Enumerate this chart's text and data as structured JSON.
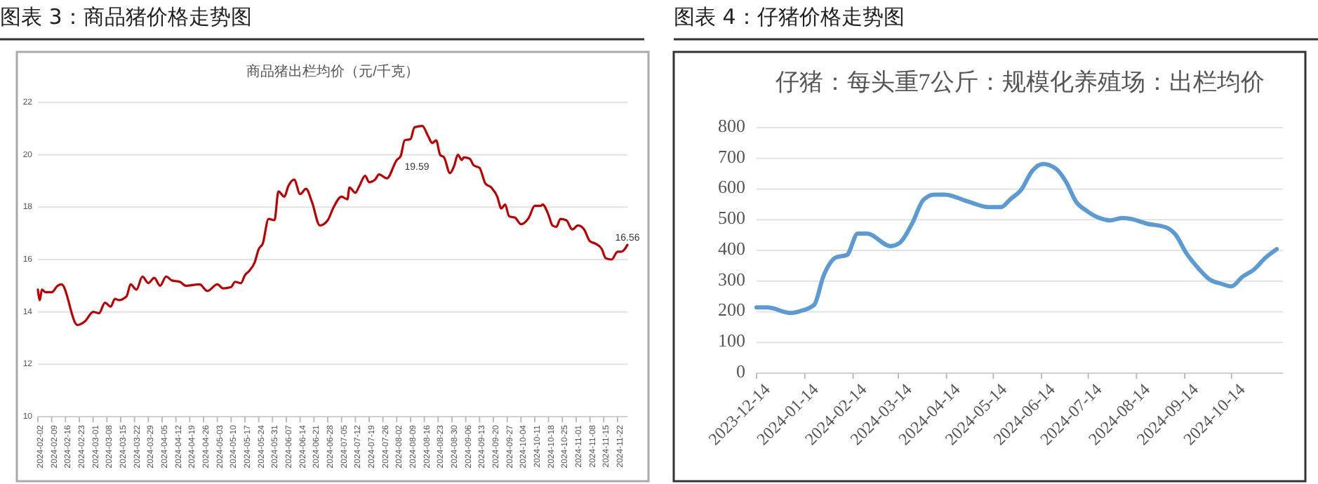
{
  "chart_data": [
    {
      "type": "line",
      "title": "图表 3：商品猪价格走势图",
      "subtitle": "商品猪出栏均价（元/千克）",
      "x": [
        "2024-02-02",
        "2024-02-03",
        "2024-02-04",
        "2024-02-06",
        "2024-02-09",
        "2024-02-12",
        "2024-02-14",
        "2024-02-22",
        "2024-02-26",
        "2024-03-01",
        "2024-03-04",
        "2024-03-07",
        "2024-03-10",
        "2024-03-12",
        "2024-03-14",
        "2024-03-18",
        "2024-03-20",
        "2024-03-23",
        "2024-03-26",
        "2024-03-29",
        "2024-04-01",
        "2024-04-04",
        "2024-04-07",
        "2024-04-10",
        "2024-04-14",
        "2024-04-17",
        "2024-04-24",
        "2024-04-28",
        "2024-05-03",
        "2024-05-06",
        "2024-05-10",
        "2024-05-12",
        "2024-05-15",
        "2024-05-17",
        "2024-05-19",
        "2024-05-22",
        "2024-05-24",
        "2024-05-26",
        "2024-05-29",
        "2024-06-01",
        "2024-06-03",
        "2024-06-06",
        "2024-06-08",
        "2024-06-11",
        "2024-06-14",
        "2024-06-17",
        "2024-06-20",
        "2024-06-24",
        "2024-06-28",
        "2024-07-01",
        "2024-07-05",
        "2024-07-08",
        "2024-07-09",
        "2024-07-12",
        "2024-07-14",
        "2024-07-17",
        "2024-07-19",
        "2024-07-22",
        "2024-07-24",
        "2024-07-28",
        "2024-08-02",
        "2024-08-04",
        "2024-08-06",
        "2024-08-09",
        "2024-08-11",
        "2024-08-15",
        "2024-08-18",
        "2024-08-20",
        "2024-08-22",
        "2024-08-24",
        "2024-08-26",
        "2024-08-29",
        "2024-08-31",
        "2024-09-02",
        "2024-09-04",
        "2024-09-05",
        "2024-09-08",
        "2024-09-10",
        "2024-09-13",
        "2024-09-16",
        "2024-09-19",
        "2024-09-22",
        "2024-09-24",
        "2024-09-26",
        "2024-09-28",
        "2024-10-01",
        "2024-10-04",
        "2024-10-08",
        "2024-10-11",
        "2024-10-14",
        "2024-10-15",
        "2024-10-18",
        "2024-10-20",
        "2024-10-22",
        "2024-10-24",
        "2024-10-27",
        "2024-10-30",
        "2024-11-02",
        "2024-11-05",
        "2024-11-08",
        "2024-11-11",
        "2024-11-14",
        "2024-11-16",
        "2024-11-19",
        "2024-11-22",
        "2024-11-24",
        "2024-11-27"
      ],
      "series": [
        {
          "color": "#c00000",
          "values": [
            14.85,
            14.45,
            14.85,
            14.75,
            14.75,
            15.0,
            15.05,
            13.5,
            13.65,
            14.0,
            13.95,
            14.35,
            14.2,
            14.5,
            14.45,
            14.6,
            15.05,
            14.85,
            15.35,
            15.1,
            15.3,
            15.0,
            15.35,
            15.2,
            15.15,
            15.0,
            15.05,
            14.8,
            15.05,
            14.9,
            14.95,
            15.15,
            15.1,
            15.4,
            15.55,
            15.9,
            16.4,
            16.6,
            17.55,
            17.5,
            18.6,
            18.4,
            18.8,
            19.05,
            18.5,
            18.7,
            18.2,
            17.3,
            17.5,
            18.0,
            18.4,
            18.3,
            18.75,
            18.55,
            18.8,
            19.2,
            18.95,
            19.05,
            19.25,
            19.1,
            19.8,
            19.95,
            20.55,
            20.6,
            21.05,
            21.1,
            20.7,
            20.45,
            20.55,
            20.0,
            19.9,
            19.3,
            19.55,
            20.0,
            19.8,
            19.9,
            19.85,
            19.6,
            19.5,
            18.9,
            18.75,
            18.4,
            17.95,
            18.1,
            17.65,
            17.6,
            17.35,
            17.6,
            18.05,
            18.05,
            18.1,
            17.7,
            17.3,
            17.25,
            17.55,
            17.5,
            17.15,
            17.3,
            17.15,
            16.7,
            16.6,
            16.4,
            16.05,
            16.0,
            16.3,
            16.3,
            16.56
          ]
        }
      ],
      "xlim": [
        "2024-02-02",
        "2024-11-27"
      ],
      "xticks": [
        "2024-02-02",
        "2024-02-09",
        "2024-02-16",
        "2024-02-23",
        "2024-03-01",
        "2024-03-08",
        "2024-03-15",
        "2024-03-22",
        "2024-03-29",
        "2024-04-05",
        "2024-04-12",
        "2024-04-19",
        "2024-04-26",
        "2024-05-03",
        "2024-05-10",
        "2024-05-17",
        "2024-05-24",
        "2024-05-31",
        "2024-06-07",
        "2024-06-14",
        "2024-06-21",
        "2024-06-28",
        "2024-07-05",
        "2024-07-12",
        "2024-07-19",
        "2024-07-26",
        "2024-08-02",
        "2024-08-09",
        "2024-08-16",
        "2024-08-23",
        "2024-08-30",
        "2024-09-06",
        "2024-09-13",
        "2024-09-20",
        "2024-09-27",
        "2024-10-04",
        "2024-10-11",
        "2024-10-18",
        "2024-10-25",
        "2024-11-01",
        "2024-11-08",
        "2024-11-15",
        "2024-11-22"
      ],
      "ylim": [
        10,
        22
      ],
      "yticks": [
        10,
        12,
        14,
        16,
        18,
        20,
        22
      ],
      "grid": "y",
      "annotations": [
        "19.59",
        {
          "text": "16.56",
          "x": "2024-11-27",
          "y": 16.56
        }
      ]
    },
    {
      "type": "line",
      "title": "图表 4：仔猪价格走势图",
      "subtitle": "仔猪：每头重7公斤：规模化养殖场：出栏均价",
      "x": [
        "2023-12-14",
        "2023-12-21",
        "2024-01-05",
        "2024-01-11",
        "2024-01-20",
        "2024-01-26",
        "2024-02-03",
        "2024-02-10",
        "2024-02-17",
        "2024-02-23",
        "2024-03-09",
        "2024-03-15",
        "2024-03-23",
        "2024-03-30",
        "2024-04-06",
        "2024-04-13",
        "2024-04-28",
        "2024-05-11",
        "2024-05-19",
        "2024-05-25",
        "2024-06-01",
        "2024-06-08",
        "2024-06-15",
        "2024-06-23",
        "2024-06-30",
        "2024-07-06",
        "2024-07-13",
        "2024-07-21",
        "2024-07-28",
        "2024-08-05",
        "2024-08-12",
        "2024-08-20",
        "2024-09-02",
        "2024-09-08",
        "2024-09-15",
        "2024-09-23",
        "2024-09-30",
        "2024-10-07",
        "2024-10-14",
        "2024-10-21",
        "2024-10-28",
        "2024-11-05",
        "2024-11-12"
      ],
      "series": [
        {
          "color": "#5b9bd5",
          "values": [
            214,
            214,
            196,
            202,
            223,
            317,
            377,
            385,
            455,
            455,
            414,
            425,
            489,
            564,
            582,
            582,
            559,
            541,
            541,
            567,
            598,
            659,
            682,
            667,
            621,
            560,
            529,
            506,
            498,
            506,
            501,
            488,
            475,
            452,
            391,
            340,
            305,
            292,
            283,
            314,
            336,
            377,
            404
          ]
        }
      ],
      "xlim": [
        "2023-12-14",
        "2024-11-16"
      ],
      "xticks": [
        "2023-12-14",
        "2024-01-14",
        "2024-02-14",
        "2024-03-14",
        "2024-04-14",
        "2024-05-14",
        "2024-06-14",
        "2024-07-14",
        "2024-08-14",
        "2024-09-14",
        "2024-10-14"
      ],
      "ylim": [
        0,
        800
      ],
      "yticks": [
        0,
        100,
        200,
        300,
        400,
        500,
        600,
        700,
        800
      ],
      "grid": "y"
    }
  ]
}
